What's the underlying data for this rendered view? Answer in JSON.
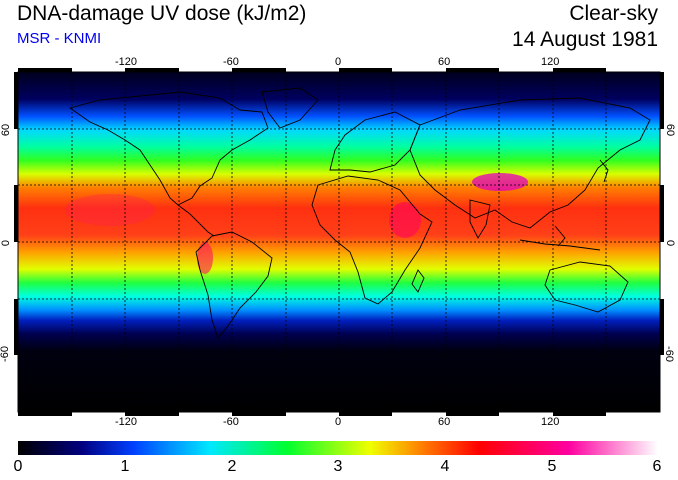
{
  "header": {
    "title": "DNA-damage UV dose (kJ/m2)",
    "source": "MSR - KNMI",
    "condition": "Clear-sky",
    "date": "14 August 1981"
  },
  "map": {
    "projection": "equirectangular",
    "lon_ticks": [
      "-120",
      "-60",
      "0",
      "60",
      "120"
    ],
    "lat_ticks": [
      "60",
      "0",
      "-60"
    ],
    "lon_tick_values": [
      -120,
      -60,
      0,
      60,
      120
    ],
    "lat_tick_values": [
      60,
      0,
      -60
    ],
    "grid": "dashed 30deg",
    "colors": {
      "polar_south": "#000000",
      "low": "#000040",
      "mid": "#00e0ff",
      "equatorial": "#ff3a1a",
      "max": "#ff00cc"
    }
  },
  "colorbar": {
    "labels": [
      "0",
      "1",
      "2",
      "3",
      "4",
      "5",
      "6"
    ],
    "range": [
      0,
      6
    ],
    "stops": [
      "#000000",
      "#0000a0",
      "#0060ff",
      "#00e8ff",
      "#00ff20",
      "#f0ff00",
      "#ff8000",
      "#ff0000",
      "#ff00a0",
      "#ffffff"
    ]
  }
}
